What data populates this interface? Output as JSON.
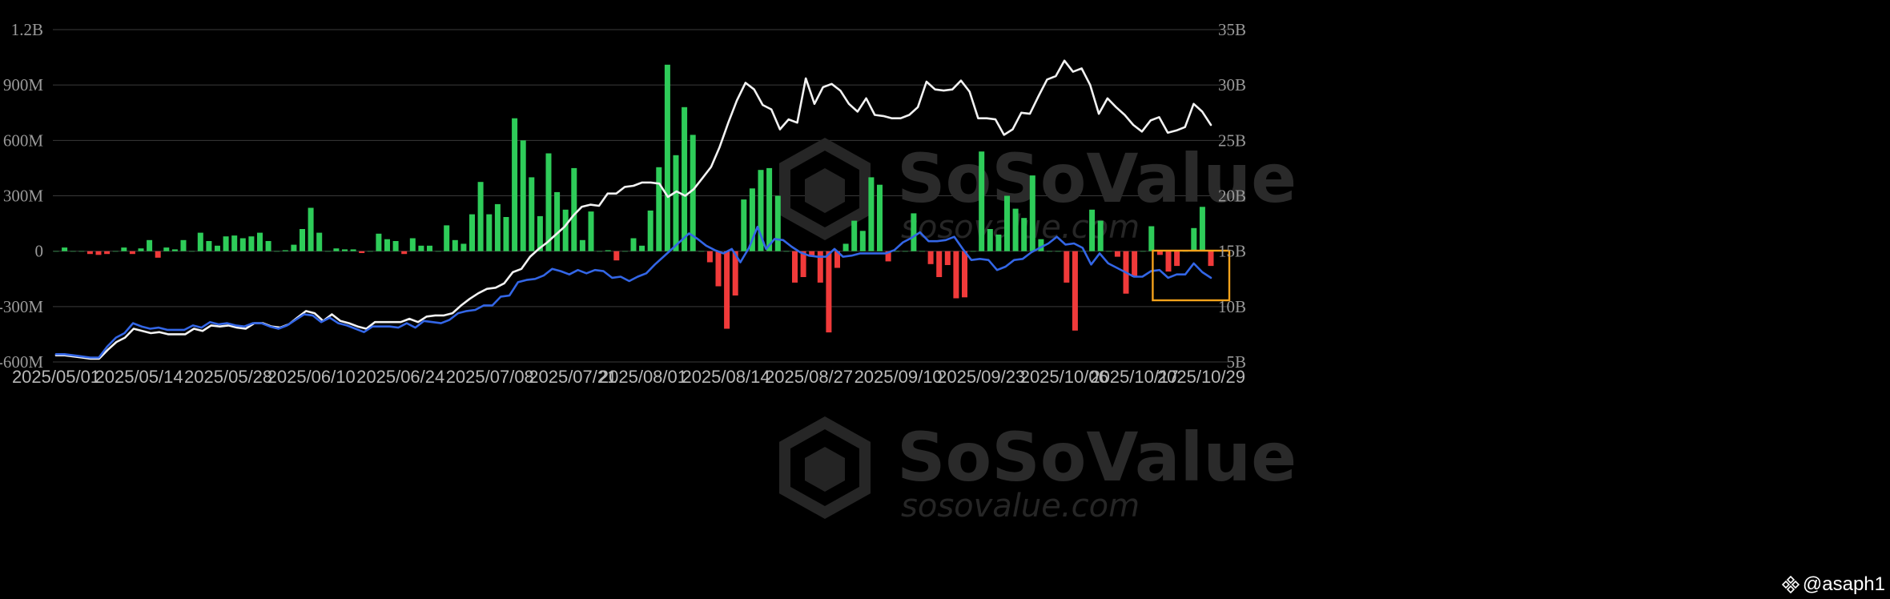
{
  "colors": {
    "background": "#000000",
    "grid": "#3a3a3a",
    "bar_positive": "#2ecc59",
    "bar_negative": "#f03a3a",
    "line_white": "#f2f2f2",
    "line_blue": "#3366e6",
    "highlight_box": "#f5a21b"
  },
  "watermark": {
    "brand": "SoSoValue",
    "domain": "sosovalue.com"
  },
  "credit": {
    "text": "@asaph1",
    "icon": "four-diamond-icon"
  },
  "chart_data": {
    "type": "bar",
    "x_tick_labels": [
      "2025/05/01",
      "2025/05/14",
      "2025/05/28",
      "2025/06/10",
      "2025/06/24",
      "2025/07/08",
      "2025/07/21",
      "2025/08/01",
      "2025/08/14",
      "2025/08/27",
      "2025/09/10",
      "2025/09/23",
      "2025/10/06",
      "2025/10/17",
      "2025/10/29"
    ],
    "x_range": [
      "2025/05/01",
      "2025/10/29"
    ],
    "y_left": {
      "ticks": [
        "1.2B",
        "900M",
        "600M",
        "300M",
        "0",
        "-300M",
        "-600M"
      ],
      "range": [
        -600000000,
        1200000000
      ]
    },
    "y_right": {
      "ticks": [
        "35B",
        "30B",
        "25B",
        "20B",
        "15B",
        "10B",
        "5B"
      ],
      "range": [
        5000000000,
        35000000000
      ]
    },
    "grid": true,
    "highlight": {
      "from": "2025/10/17",
      "to": "2025/10/29",
      "description": ""
    },
    "series": [
      {
        "kind": "bar",
        "axis": "left",
        "values": [
          0,
          20,
          0,
          0,
          -15,
          -20,
          -15,
          0,
          20,
          -15,
          15,
          60,
          -35,
          20,
          10,
          60,
          0,
          100,
          55,
          30,
          80,
          85,
          70,
          80,
          100,
          55,
          0,
          5,
          35,
          120,
          235,
          100,
          0,
          15,
          10,
          10,
          -10,
          0,
          95,
          65,
          55,
          -15,
          70,
          30,
          30,
          0,
          140,
          60,
          40,
          200,
          375,
          200,
          255,
          185,
          720,
          600,
          400,
          190,
          530,
          320,
          225,
          450,
          60,
          215,
          0,
          5,
          -50,
          0,
          70,
          30,
          220,
          455,
          1010,
          520,
          780,
          630,
          0,
          -60,
          -190,
          -420,
          -240,
          280,
          340,
          440,
          450,
          300,
          0,
          -170,
          -140,
          -30,
          -170,
          -440,
          -90,
          40,
          165,
          110,
          400,
          360,
          -55,
          0,
          0,
          205,
          0,
          -70,
          -140,
          -75,
          -255,
          -250,
          0,
          540,
          120,
          90,
          300,
          230,
          180,
          410,
          65,
          0,
          0,
          -170,
          -430,
          0,
          225,
          165,
          0,
          -30,
          -230,
          -140,
          0,
          135,
          -20,
          -110,
          -80,
          0,
          125,
          240,
          -80
        ]
      },
      {
        "kind": "line",
        "axis": "right",
        "name": "",
        "values": [
          5.6,
          5.6,
          5.5,
          5.4,
          5.3,
          5.3,
          6.1,
          6.8,
          7.2,
          8,
          7.8,
          7.6,
          7.7,
          7.5,
          7.5,
          7.5,
          8,
          7.8,
          8.3,
          8.2,
          8.3,
          8.1,
          8,
          8.5,
          8.5,
          8.2,
          8.1,
          8.4,
          9,
          9.6,
          9.4,
          8.7,
          9.3,
          8.7,
          8.5,
          8.2,
          8,
          8.6,
          8.6,
          8.6,
          8.6,
          8.9,
          8.6,
          9.1,
          9.2,
          9.2,
          9.4,
          10.1,
          10.7,
          11.2,
          11.6,
          11.7,
          12.1,
          13.1,
          13.4,
          14.5,
          15.2,
          15.8,
          16.5,
          17.2,
          18.2,
          19,
          19.2,
          19.1,
          20.2,
          20.2,
          20.8,
          20.9,
          21.2,
          21.2,
          21.1,
          19.9,
          20.4,
          20,
          20.6,
          21.6,
          22.6,
          24.4,
          26.6,
          28.6,
          30.2,
          29.6,
          28.2,
          27.8,
          26,
          26.9,
          26.6,
          30.6,
          28.3,
          29.8,
          30.1,
          29.5,
          28.3,
          27.6,
          28.8,
          27.3,
          27.2,
          27,
          27,
          27.3,
          28,
          30.3,
          29.6,
          29.5,
          29.6,
          30.4,
          29.4,
          27,
          27,
          26.9,
          25.5,
          26,
          27.5,
          27.4,
          29,
          30.5,
          30.8,
          32.2,
          31.2,
          31.5,
          30,
          27.4,
          28.8,
          28,
          27.3,
          26.4,
          25.8,
          26.8,
          27.1,
          25.7,
          25.9,
          26.2,
          28.3,
          27.6,
          26.4
        ]
      },
      {
        "kind": "line",
        "axis": "right",
        "name": "",
        "values": [
          5.7,
          5.7,
          5.6,
          5.5,
          5.4,
          5.4,
          6.4,
          7.2,
          7.6,
          8.5,
          8.2,
          8,
          8.1,
          7.9,
          7.9,
          7.9,
          8.3,
          8.1,
          8.6,
          8.4,
          8.5,
          8.3,
          8.2,
          8.5,
          8.5,
          8.2,
          8,
          8.3,
          8.8,
          9.3,
          9.2,
          8.6,
          9,
          8.5,
          8.3,
          8,
          7.7,
          8.2,
          8.2,
          8.2,
          8.1,
          8.5,
          8.1,
          8.7,
          8.6,
          8.5,
          8.8,
          9.4,
          9.6,
          9.7,
          10.1,
          10.1,
          10.9,
          11,
          12.2,
          12.4,
          12.5,
          12.8,
          13.4,
          13.2,
          12.9,
          13.3,
          13,
          13.3,
          13.2,
          12.6,
          12.7,
          12.3,
          12.7,
          13,
          13.8,
          14.5,
          15.2,
          15.9,
          16.6,
          16.1,
          15.5,
          15.1,
          14.8,
          15.2,
          14,
          15.3,
          17.2,
          15.2,
          16.1,
          16,
          15.4,
          14.9,
          14.6,
          14.5,
          14.5,
          15.2,
          14.5,
          14.6,
          14.8,
          14.8,
          14.8,
          14.8,
          15.1,
          15.8,
          16.2,
          16.7,
          15.9,
          15.9,
          16,
          16.3,
          15.2,
          14.2,
          14.3,
          14.2,
          13.3,
          13.6,
          14.2,
          14.3,
          14.9,
          15.3,
          15.7,
          16.3,
          15.6,
          15.7,
          15.3,
          13.8,
          14.8,
          13.9,
          13.5,
          13.1,
          12.7,
          12.7,
          13.2,
          13.3,
          12.6,
          12.9,
          12.9,
          13.9,
          13.1,
          12.6
        ]
      }
    ]
  }
}
